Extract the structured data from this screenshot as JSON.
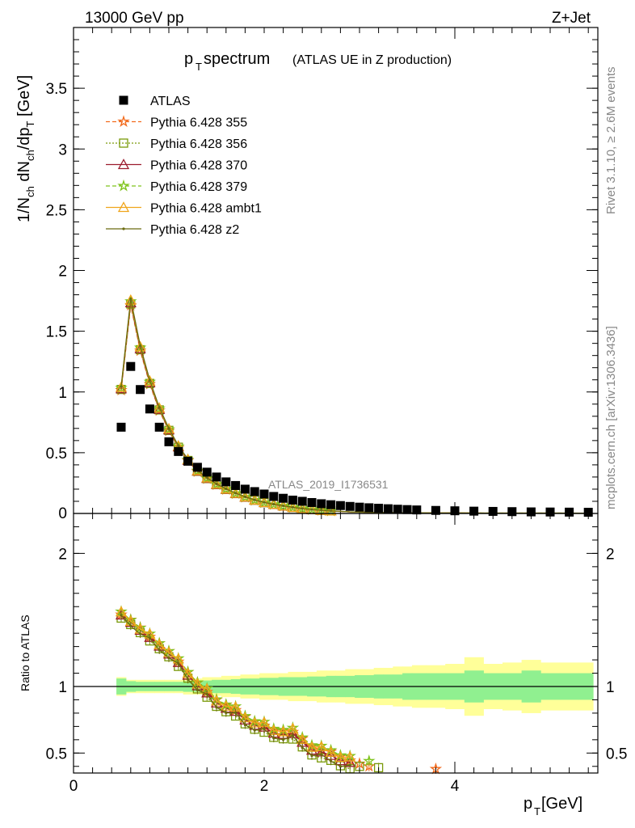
{
  "header": {
    "energy_label": "13000 GeV pp",
    "process_label": "Z+Jet",
    "title_main": "p",
    "title_sub": "T",
    "title_rest": " spectrum",
    "title_detail": "(ATLAS UE in Z production)",
    "analysis_id": "ATLAS_2019_I1736531",
    "side_rivet": "Rivet 3.1.10, ≥ 2.6M events",
    "side_mcplots": "mcplots.cern.ch [arXiv:1306.3436]"
  },
  "chart_data": [
    {
      "type": "scatter",
      "ylabel_parts": [
        "1/N",
        "ch",
        " dN",
        "ch",
        "/dp",
        "T",
        " [GeV]"
      ],
      "xlim": [
        0,
        5.5
      ],
      "ylim": [
        0,
        4.0
      ],
      "yticks": [
        {
          "v": 0.5,
          "label": "0.5"
        },
        {
          "v": 1,
          "label": "1"
        },
        {
          "v": 1.5,
          "label": "1.5"
        },
        {
          "v": 2,
          "label": "2"
        },
        {
          "v": 2.5,
          "label": "2.5"
        },
        {
          "v": 3,
          "label": "3"
        },
        {
          "v": 3.5,
          "label": "3.5"
        }
      ],
      "ytick_zero_label": "0",
      "data_name": "ATLAS",
      "data_x": [
        0.5,
        0.6,
        0.7,
        0.8,
        0.9,
        1.0,
        1.1,
        1.2,
        1.3,
        1.4,
        1.5,
        1.6,
        1.7,
        1.8,
        1.9,
        2.0,
        2.1,
        2.2,
        2.3,
        2.4,
        2.5,
        2.6,
        2.7,
        2.8,
        2.9,
        3.0,
        3.1,
        3.2,
        3.3,
        3.4,
        3.5,
        3.6,
        3.8,
        4.0,
        4.2,
        4.4,
        4.6,
        4.8,
        5.0,
        5.2,
        5.4
      ],
      "data_y": [
        0.71,
        1.21,
        1.02,
        0.86,
        0.71,
        0.59,
        0.51,
        0.43,
        0.38,
        0.34,
        0.3,
        0.26,
        0.23,
        0.2,
        0.18,
        0.16,
        0.14,
        0.125,
        0.11,
        0.1,
        0.09,
        0.08,
        0.072,
        0.065,
        0.058,
        0.052,
        0.047,
        0.043,
        0.039,
        0.035,
        0.032,
        0.029,
        0.025,
        0.022,
        0.019,
        0.017,
        0.015,
        0.013,
        0.012,
        0.011,
        0.01
      ],
      "mc_x": [
        0.5,
        0.6,
        0.7,
        0.8,
        0.9,
        1.0,
        1.1,
        1.2,
        1.3,
        1.4,
        1.5,
        1.6,
        1.7,
        1.8,
        1.9,
        2.0,
        2.1,
        2.2,
        2.3,
        2.4,
        2.5,
        2.6,
        2.7,
        2.8,
        2.9,
        3.0,
        3.2,
        3.4,
        3.6,
        3.8,
        4.0,
        4.3,
        4.6,
        5.0,
        5.4
      ],
      "mc_y": [
        1.03,
        1.74,
        1.36,
        1.08,
        0.86,
        0.69,
        0.55,
        0.44,
        0.35,
        0.29,
        0.24,
        0.2,
        0.165,
        0.135,
        0.11,
        0.09,
        0.075,
        0.062,
        0.05,
        0.04,
        0.032,
        0.026,
        0.021,
        0.017,
        0.013,
        0.011,
        0.008,
        0.006,
        0.005,
        0.004,
        0.004,
        0.003,
        0.003,
        0.003,
        0.002
      ],
      "series": [
        {
          "name": "Pythia 6.428 355",
          "color": "#f26b1d",
          "marker": "star",
          "dash": "5,3"
        },
        {
          "name": "Pythia 6.428 356",
          "color": "#7a9a0a",
          "marker": "square-open",
          "dash": "2,2"
        },
        {
          "name": "Pythia 6.428 370",
          "color": "#9b1c2e",
          "marker": "triangle-open",
          "dash": ""
        },
        {
          "name": "Pythia 6.428 379",
          "color": "#7fc41c",
          "marker": "star",
          "dash": "5,3"
        },
        {
          "name": "Pythia 6.428 ambt1",
          "color": "#f0a51b",
          "marker": "triangle-open",
          "dash": ""
        },
        {
          "name": "Pythia 6.428 z2",
          "color": "#6b6b10",
          "marker": "dot",
          "dash": ""
        }
      ],
      "legend_position": "top-left"
    },
    {
      "type": "scatter",
      "ylabel": "Ratio to ATLAS",
      "xlabel_main": "p",
      "xlabel_sub": "T",
      "xlabel_rest": " [GeV]",
      "xlim": [
        0,
        5.5
      ],
      "ylim": [
        0.35,
        2.3
      ],
      "xticks": [
        {
          "v": 0,
          "label": "0"
        },
        {
          "v": 2,
          "label": "2"
        },
        {
          "v": 4,
          "label": "4"
        }
      ],
      "yticks": [
        {
          "v": 0.5,
          "label": "0.5"
        },
        {
          "v": 1,
          "label": "1"
        },
        {
          "v": 2,
          "label": "2"
        }
      ],
      "band_inner_color": "#90f090",
      "band_outer_color": "#ffff99",
      "band_x": [
        0.5,
        0.6,
        0.7,
        0.8,
        0.9,
        1.0,
        1.1,
        1.2,
        1.3,
        1.4,
        1.5,
        1.6,
        1.7,
        1.8,
        1.9,
        2.0,
        2.1,
        2.2,
        2.3,
        2.4,
        2.5,
        2.6,
        2.7,
        2.8,
        2.9,
        3.0,
        3.1,
        3.2,
        3.3,
        3.4,
        3.5,
        3.6,
        3.8,
        4.0,
        4.2,
        4.4,
        4.6,
        4.8,
        5.0,
        5.2,
        5.4
      ],
      "band_inner": [
        0.06,
        0.04,
        0.035,
        0.035,
        0.035,
        0.035,
        0.035,
        0.04,
        0.04,
        0.045,
        0.05,
        0.05,
        0.055,
        0.06,
        0.06,
        0.065,
        0.065,
        0.07,
        0.07,
        0.07,
        0.075,
        0.075,
        0.08,
        0.08,
        0.08,
        0.085,
        0.085,
        0.09,
        0.09,
        0.09,
        0.1,
        0.1,
        0.1,
        0.1,
        0.12,
        0.1,
        0.1,
        0.12,
        0.1,
        0.1,
        0.1
      ],
      "band_outer": [
        0.07,
        0.05,
        0.05,
        0.05,
        0.05,
        0.05,
        0.05,
        0.06,
        0.06,
        0.07,
        0.07,
        0.08,
        0.08,
        0.09,
        0.09,
        0.1,
        0.1,
        0.1,
        0.11,
        0.11,
        0.11,
        0.12,
        0.12,
        0.12,
        0.13,
        0.13,
        0.13,
        0.14,
        0.14,
        0.15,
        0.15,
        0.16,
        0.16,
        0.17,
        0.22,
        0.17,
        0.18,
        0.2,
        0.18,
        0.18,
        0.18
      ],
      "ratio_x": [
        0.5,
        0.6,
        0.7,
        0.8,
        0.9,
        1.0,
        1.1,
        1.2,
        1.3,
        1.4,
        1.5,
        1.6,
        1.7,
        1.8,
        1.9,
        2.0,
        2.1,
        2.2,
        2.3,
        2.4,
        2.5,
        2.6,
        2.7,
        2.8,
        2.9
      ],
      "ratio_y": [
        1.52,
        1.48,
        1.42,
        1.35,
        1.3,
        1.24,
        1.16,
        1.08,
        1.0,
        0.93,
        0.87,
        0.83,
        0.79,
        0.74,
        0.7,
        0.67,
        0.64,
        0.63,
        0.62,
        0.57,
        0.51,
        0.48,
        0.47,
        0.43,
        0.4
      ],
      "series_offsets": [
        0.02,
        -0.01,
        0.01,
        0.03,
        0.025,
        -0.005
      ],
      "extra_points": [
        {
          "series": 0,
          "x": [
            3.0,
            3.1,
            3.8
          ],
          "y": [
            0.42,
            0.4,
            0.38
          ]
        },
        {
          "series": 1,
          "x": [
            3.0,
            3.2
          ],
          "y": [
            0.4,
            0.39
          ]
        },
        {
          "series": 3,
          "x": [
            3.1
          ],
          "y": [
            0.44
          ]
        }
      ]
    }
  ]
}
